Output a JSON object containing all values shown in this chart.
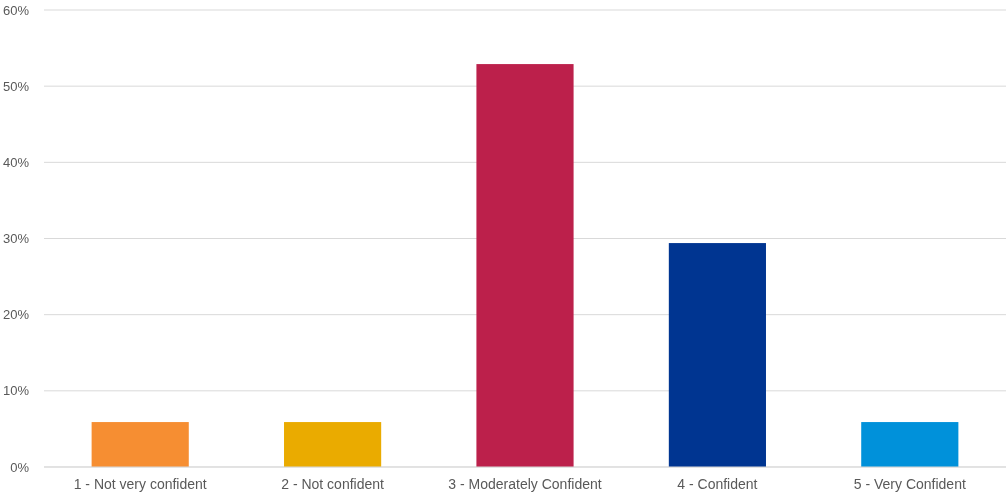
{
  "chart_data": {
    "type": "bar",
    "categories": [
      "1 - Not very confident",
      "2 - Not confident",
      "3 - Moderately Confident",
      "4 - Confident",
      "5 - Very Confident"
    ],
    "values": [
      5.9,
      5.9,
      52.9,
      29.4,
      5.9
    ],
    "colors": [
      "#f68e32",
      "#eaab00",
      "#bc204b",
      "#003591",
      "#0091da"
    ],
    "ylim": [
      0,
      60
    ],
    "yticks": [
      {
        "value": 0,
        "label": "0%"
      },
      {
        "value": 10,
        "label": "10%"
      },
      {
        "value": 20,
        "label": "20%"
      },
      {
        "value": 30,
        "label": "30%"
      },
      {
        "value": 40,
        "label": "40%"
      },
      {
        "value": 50,
        "label": "50%"
      },
      {
        "value": 60,
        "label": "60%"
      }
    ],
    "grid": "y"
  }
}
